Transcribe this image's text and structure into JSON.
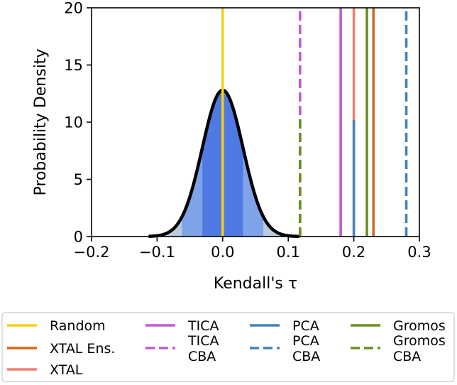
{
  "chart_data": {
    "type": "line",
    "title": "",
    "xlabel": "Kendall's τ",
    "ylabel": "Probability Density",
    "xlim": [
      -0.2,
      0.3
    ],
    "ylim": [
      0,
      20
    ],
    "xticks": [
      -0.2,
      -0.1,
      0.0,
      0.1,
      0.2,
      0.3
    ],
    "xtick_labels": [
      "−0.2",
      "−0.1",
      "0.0",
      "0.1",
      "0.2",
      "0.3"
    ],
    "yticks": [
      0,
      5,
      10,
      15,
      20
    ],
    "ytick_labels": [
      "0",
      "5",
      "10",
      "15",
      "20"
    ],
    "grid": false,
    "distribution": {
      "kind": "normal",
      "name": "Random null distribution",
      "mean": 0.0,
      "std": 0.031,
      "peak": 12.8,
      "x_range": [
        -0.113,
        0.117
      ],
      "bands": [
        {
          "from": -0.031,
          "to": 0.031,
          "color": "#4f79e3"
        },
        {
          "from": -0.062,
          "to": 0.062,
          "color": "#7fa3e8"
        },
        {
          "from": -0.113,
          "to": 0.117,
          "color": "#b9cbe3"
        }
      ]
    },
    "series": [
      {
        "name": "Random",
        "x": 0.0,
        "y_from": 0,
        "y_to": 20,
        "color": "#f5d018",
        "style": "solid"
      },
      {
        "name": "TICA CBA",
        "x": 0.118,
        "y_from": 0,
        "y_to": 20,
        "color": "#bf5bd5",
        "style": "dashed"
      },
      {
        "name": "Gromos CBA",
        "x": 0.118,
        "y_from": 0,
        "y_to": 10.6,
        "color": "#6b8e23",
        "style": "dashed"
      },
      {
        "name": "TICA",
        "x": 0.18,
        "y_from": 0,
        "y_to": 20,
        "color": "#bf5bd5",
        "style": "solid"
      },
      {
        "name": "PCA",
        "x": 0.2,
        "y_from": 0,
        "y_to": 10.2,
        "color": "#4682b4",
        "style": "solid"
      },
      {
        "name": "XTAL",
        "x": 0.2,
        "y_from": 10.2,
        "y_to": 20,
        "color": "#f08070",
        "style": "solid"
      },
      {
        "name": "Gromos",
        "x": 0.22,
        "y_from": 0,
        "y_to": 20,
        "color": "#6b8e23",
        "style": "solid"
      },
      {
        "name": "XTAL Ens.",
        "x": 0.23,
        "y_from": 0,
        "y_to": 20,
        "color": "#d2691e",
        "style": "solid"
      },
      {
        "name": "PCA CBA",
        "x": 0.28,
        "y_from": 0,
        "y_to": 20,
        "color": "#4682b4",
        "style": "dashed"
      }
    ],
    "legend": {
      "placement": "bottom",
      "columns": [
        [
          {
            "label": "Random",
            "color": "#f5d018",
            "style": "solid"
          },
          {
            "label": "XTAL Ens.",
            "color": "#d2691e",
            "style": "solid"
          },
          {
            "label": "XTAL",
            "color": "#f08070",
            "style": "solid"
          }
        ],
        [
          {
            "label": "TICA",
            "color": "#bf5bd5",
            "style": "solid"
          },
          {
            "label": "TICA\nCBA",
            "color": "#bf5bd5",
            "style": "dashed"
          }
        ],
        [
          {
            "label": "PCA",
            "color": "#4682b4",
            "style": "solid"
          },
          {
            "label": "PCA\nCBA",
            "color": "#4682b4",
            "style": "dashed"
          }
        ],
        [
          {
            "label": "Gromos",
            "color": "#6b8e23",
            "style": "solid"
          },
          {
            "label": "Gromos\nCBA",
            "color": "#6b8e23",
            "style": "dashed"
          }
        ]
      ]
    }
  }
}
